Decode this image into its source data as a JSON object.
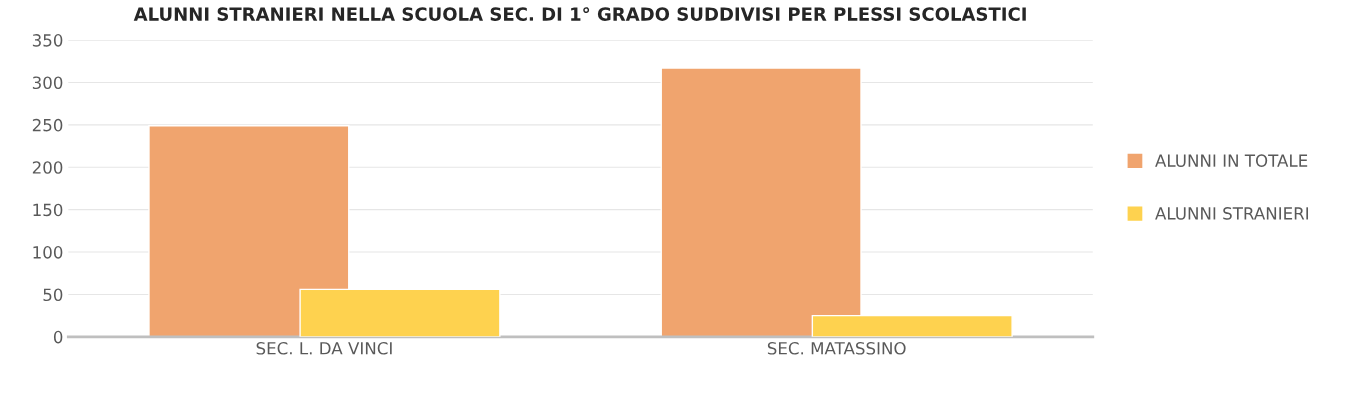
{
  "chart_data": {
    "type": "bar",
    "title": "ALUNNI STRANIERI NELLA SCUOLA SEC. DI 1° GRADO SUDDIVISI PER PLESSI SCOLASTICI",
    "categories": [
      "SEC. L. DA VINCI",
      "SEC. MATASSINO"
    ],
    "series": [
      {
        "name": "ALUNNI IN TOTALE",
        "color": "#f0a46e",
        "values": [
          249,
          317
        ]
      },
      {
        "name": "ALUNNI STRANIERI",
        "color": "#fed24f",
        "values": [
          56,
          25
        ]
      }
    ],
    "ylim": [
      0,
      350
    ],
    "yticks": [
      0,
      50,
      100,
      150,
      200,
      250,
      300,
      350
    ],
    "grid": "y",
    "legend": "right"
  }
}
